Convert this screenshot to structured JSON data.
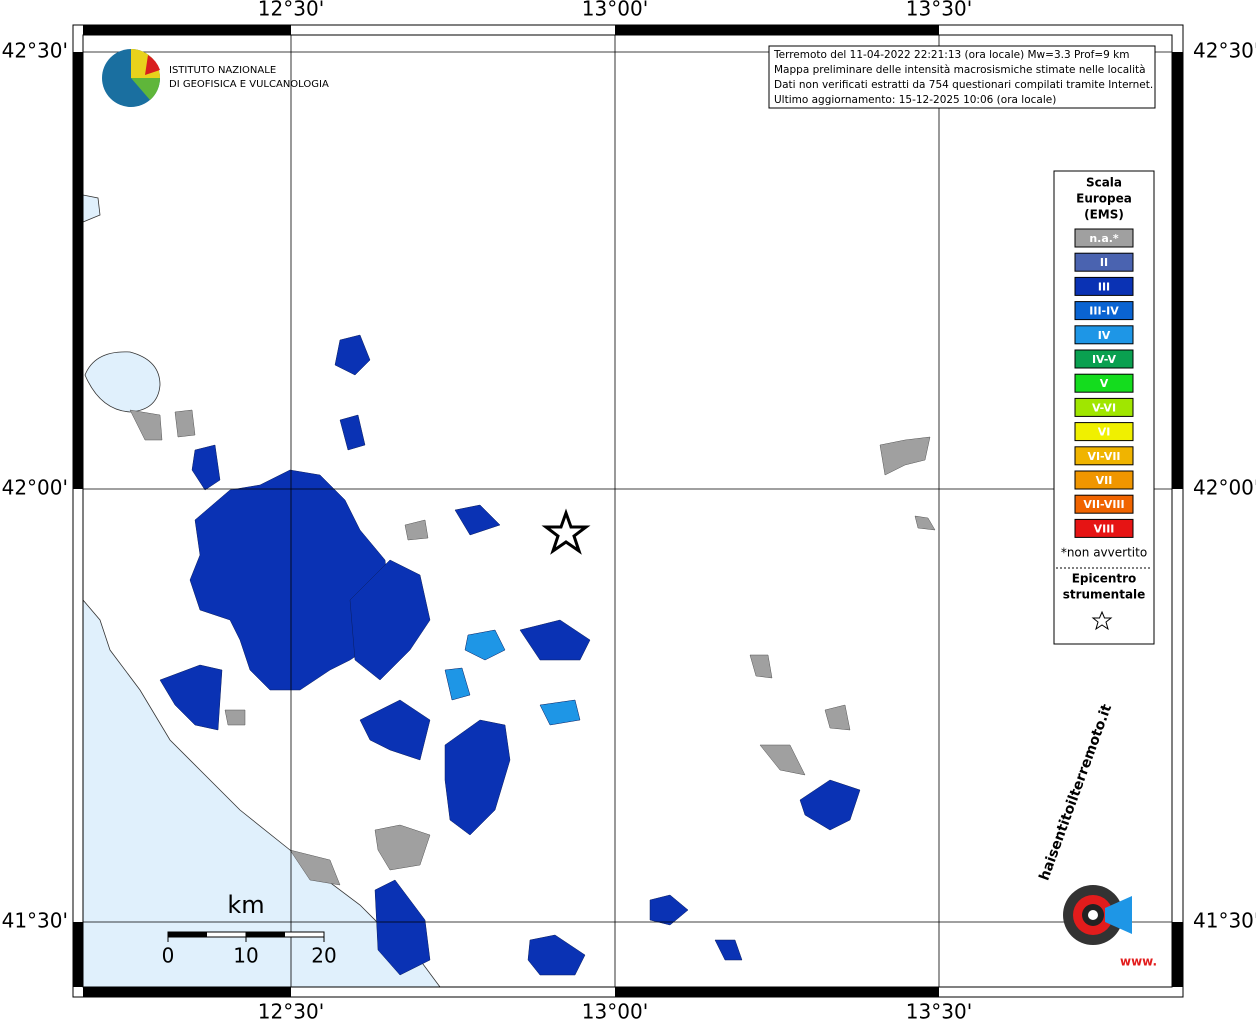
{
  "map": {
    "lon_labels": [
      "12°30'",
      "13°00'",
      "13°30'"
    ],
    "lat_labels": [
      "42°30'",
      "42°00'",
      "41°30'"
    ],
    "info": [
      "Terremoto del 11-04-2022 22:21:13 (ora locale) Mw=3.3 Prof=9 km",
      "Mappa preliminare delle intensità macrosismiche stimate nelle località",
      "Dati non verificati estratti da 754 questionari compilati tramite Internet.",
      "Ultimo aggiornamento: 15-12-2025 10:06 (ora locale)"
    ],
    "logo_lines": [
      "ISTITUTO NAZIONALE",
      "DI GEOFISICA E VULCANOLOGIA"
    ],
    "legend": {
      "title": [
        "Scala",
        "Europea",
        "(EMS)"
      ],
      "items": [
        {
          "label": "n.a.*",
          "color": "#a0a0a0"
        },
        {
          "label": "II",
          "color": "#4a63b0"
        },
        {
          "label": "III",
          "color": "#0a32b4"
        },
        {
          "label": "III-IV",
          "color": "#0a64d2"
        },
        {
          "label": "IV",
          "color": "#1e96e6"
        },
        {
          "label": "IV-V",
          "color": "#0aa050"
        },
        {
          "label": "V",
          "color": "#14dc1e"
        },
        {
          "label": "V-VI",
          "color": "#a0e600"
        },
        {
          "label": "VI",
          "color": "#f0f000"
        },
        {
          "label": "VI-VII",
          "color": "#f0b400"
        },
        {
          "label": "VII",
          "color": "#f09600"
        },
        {
          "label": "VII-VIII",
          "color": "#f06400"
        },
        {
          "label": "VIII",
          "color": "#e61414"
        }
      ],
      "note": "*non avvertito",
      "epicenter": [
        "Epicentro",
        "strumentale"
      ]
    },
    "scale_bar": {
      "unit": "km",
      "ticks": [
        0,
        10,
        20
      ]
    },
    "site_logo": [
      "haisentitoilterremoto.it",
      "www."
    ]
  }
}
